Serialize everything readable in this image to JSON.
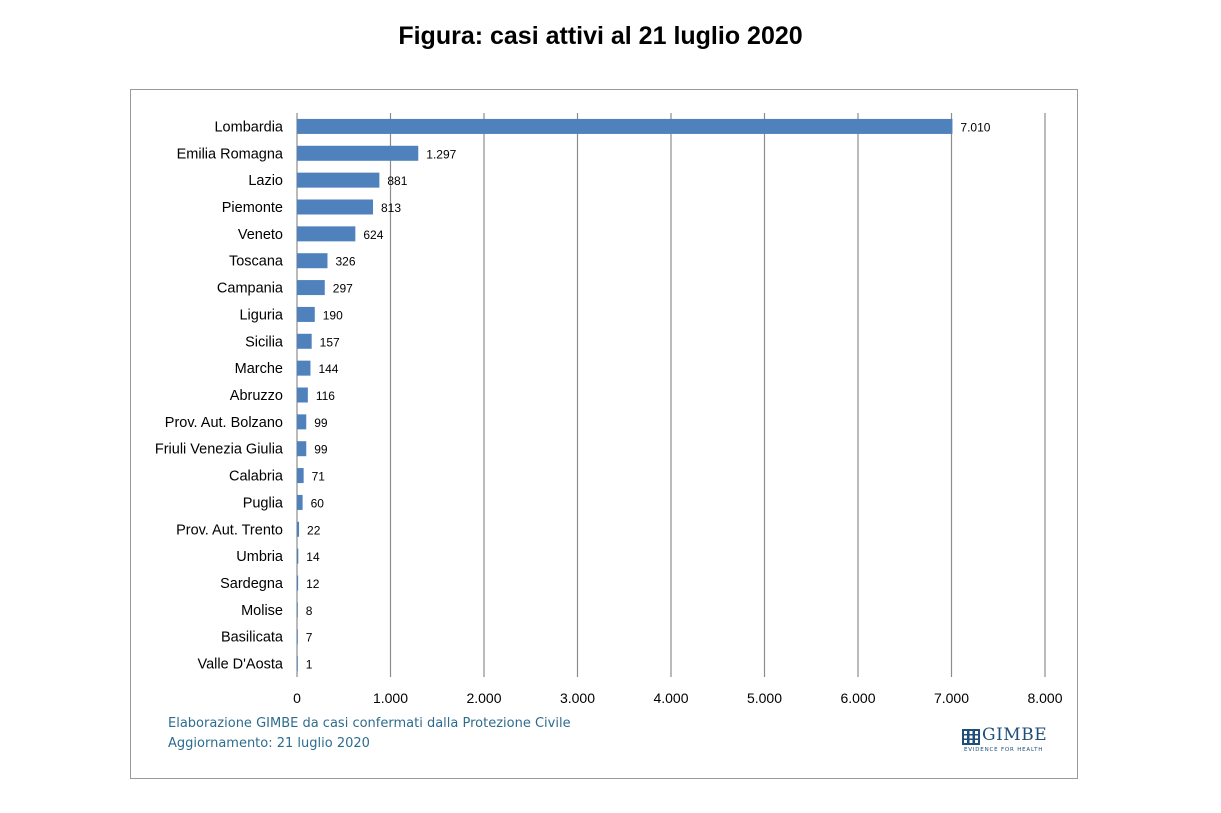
{
  "title": "Figura: casi attivi al 21 luglio 2020",
  "footnote": {
    "line1": "Elaborazione GIMBE da casi confermati dalla Protezione Civile",
    "line2": "Aggiornamento: 21 luglio 2020"
  },
  "logo": {
    "name": "GIMBE",
    "tagline": "EVIDENCE FOR HEALTH"
  },
  "colors": {
    "bar": "#4f81bd",
    "grid": "#8c8c8c",
    "footnote": "#2e6c8e",
    "logo": "#1f4e79"
  },
  "chart_data": {
    "type": "bar",
    "orientation": "horizontal",
    "categories": [
      "Lombardia",
      "Emilia Romagna",
      "Lazio",
      "Piemonte",
      "Veneto",
      "Toscana",
      "Campania",
      "Liguria",
      "Sicilia",
      "Marche",
      "Abruzzo",
      "Prov. Aut. Bolzano",
      "Friuli Venezia Giulia",
      "Calabria",
      "Puglia",
      "Prov. Aut. Trento",
      "Umbria",
      "Sardegna",
      "Molise",
      "Basilicata",
      "Valle D'Aosta"
    ],
    "values": [
      7010,
      1297,
      881,
      813,
      624,
      326,
      297,
      190,
      157,
      144,
      116,
      99,
      99,
      71,
      60,
      22,
      14,
      12,
      8,
      7,
      1
    ],
    "value_labels": [
      "7.010",
      "1.297",
      "881",
      "813",
      "624",
      "326",
      "297",
      "190",
      "157",
      "144",
      "116",
      "99",
      "99",
      "71",
      "60",
      "22",
      "14",
      "12",
      "8",
      "7",
      "1"
    ],
    "xlim": [
      0,
      8000
    ],
    "xticks": [
      0,
      1000,
      2000,
      3000,
      4000,
      5000,
      6000,
      7000,
      8000
    ],
    "xtick_labels": [
      "0",
      "1.000",
      "2.000",
      "3.000",
      "4.000",
      "5.000",
      "6.000",
      "7.000",
      "8.000"
    ],
    "grid": "vertical",
    "legend": "none",
    "xlabel": "",
    "ylabel": ""
  }
}
